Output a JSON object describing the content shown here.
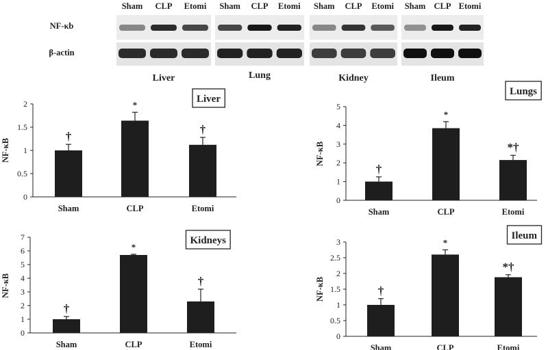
{
  "blot": {
    "row_labels": [
      "NF-κb",
      "β-actin"
    ],
    "panels": [
      {
        "tissue": "Liver",
        "lanes": [
          "Sham",
          "CLP",
          "Etomi"
        ],
        "nf": [
          0.35,
          0.85,
          0.7
        ],
        "actin": [
          0.85,
          0.85,
          0.85
        ]
      },
      {
        "tissue": "Lung",
        "lanes": [
          "Sham",
          "CLP",
          "Etomi"
        ],
        "nf": [
          0.7,
          0.95,
          0.9
        ],
        "actin": [
          0.9,
          0.9,
          0.9
        ]
      },
      {
        "tissue": "Kidney",
        "lanes": [
          "Sham",
          "CLP",
          "Etomi"
        ],
        "nf": [
          0.35,
          0.8,
          0.6
        ],
        "actin": [
          0.75,
          0.75,
          0.75
        ]
      },
      {
        "tissue": "Ileum",
        "lanes": [
          "Sham",
          "CLP",
          "Etomi"
        ],
        "nf": [
          0.3,
          0.95,
          0.9
        ],
        "actin": [
          1.0,
          1.0,
          1.0
        ]
      }
    ]
  },
  "chart_data": [
    {
      "type": "bar",
      "title": "Liver",
      "ylabel": "NF-κB",
      "xlabel": "",
      "categories": [
        "Sham",
        "CLP",
        "Etomi"
      ],
      "values": [
        1.0,
        1.64,
        1.12
      ],
      "errors": [
        0.13,
        0.18,
        0.16
      ],
      "markers": [
        "†",
        "*",
        "†"
      ],
      "ylim": [
        0,
        2
      ],
      "yticks": [
        "0",
        "0.5",
        "1",
        "1.5",
        "2"
      ],
      "ytick_values": [
        0,
        0.5,
        1,
        1.5,
        2
      ],
      "grid": false,
      "title_position": "top-right"
    },
    {
      "type": "bar",
      "title": "Lungs",
      "ylabel": "NF-κB",
      "xlabel": "",
      "categories": [
        "Sham",
        "CLP",
        "Etomi"
      ],
      "values": [
        1.0,
        3.85,
        2.15
      ],
      "errors": [
        0.25,
        0.35,
        0.25
      ],
      "markers": [
        "†",
        "*",
        "*†"
      ],
      "ylim": [
        0,
        5
      ],
      "yticks": [
        "0",
        "1",
        "2",
        "3",
        "4",
        "5"
      ],
      "ytick_values": [
        0,
        1,
        2,
        3,
        4,
        5
      ],
      "grid": false,
      "title_position": "top-right"
    },
    {
      "type": "bar",
      "title": "Kidneys",
      "ylabel": "NF-κB",
      "xlabel": "",
      "categories": [
        "Sham",
        "CLP",
        "Etomi"
      ],
      "values": [
        1.0,
        5.7,
        2.3
      ],
      "errors": [
        0.2,
        0.05,
        0.9
      ],
      "markers": [
        "†",
        "*",
        "†"
      ],
      "ylim": [
        0,
        7
      ],
      "yticks": [
        "0",
        "1",
        "2",
        "3",
        "4",
        "5",
        "6",
        "7"
      ],
      "ytick_values": [
        0,
        1,
        2,
        3,
        4,
        5,
        6,
        7
      ],
      "grid": false,
      "title_position": "top-right"
    },
    {
      "type": "bar",
      "title": "Ileum",
      "ylabel": "NF-κB",
      "xlabel": "",
      "categories": [
        "Sham",
        "CLP",
        "Etomi"
      ],
      "values": [
        1.0,
        2.6,
        1.88
      ],
      "errors": [
        0.2,
        0.15,
        0.08
      ],
      "markers": [
        "†",
        "*",
        "*†"
      ],
      "ylim": [
        0,
        3
      ],
      "yticks": [
        "0",
        "0.5",
        "1",
        "1.5",
        "2",
        "2.5",
        "3"
      ],
      "ytick_values": [
        0,
        0.5,
        1,
        1.5,
        2,
        2.5,
        3
      ],
      "grid": false,
      "title_position": "top-right"
    }
  ]
}
